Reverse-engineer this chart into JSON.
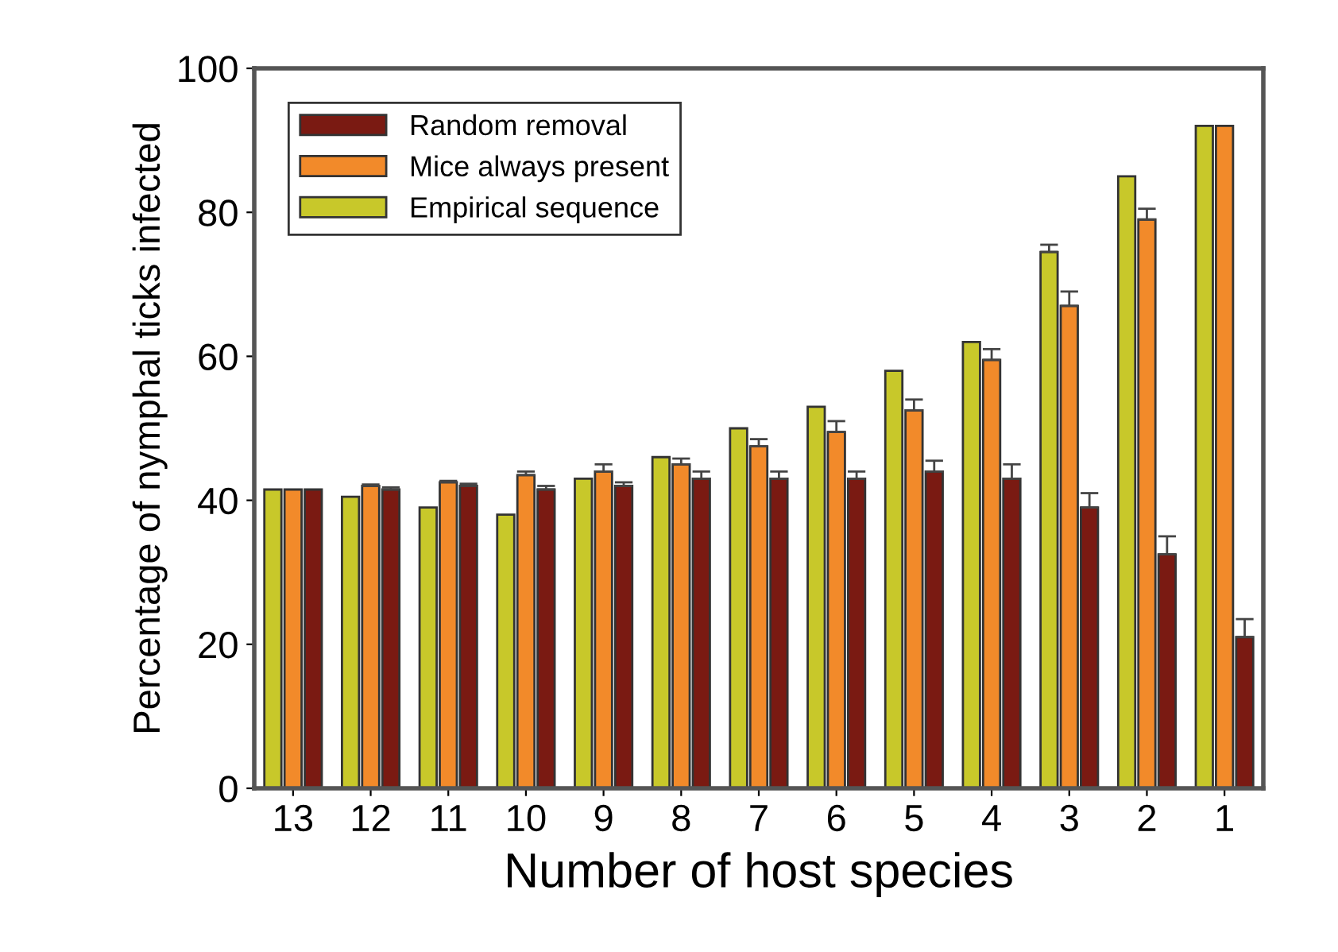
{
  "chart_data": {
    "type": "bar",
    "xlabel": "Number of host species",
    "ylabel": "Percentage of nymphal ticks infected",
    "categories": [
      "13",
      "12",
      "11",
      "10",
      "9",
      "8",
      "7",
      "6",
      "5",
      "4",
      "3",
      "2",
      "1"
    ],
    "series": [
      {
        "name": "Random removal",
        "color": "#7a1a12",
        "values": [
          41.5,
          41.5,
          42,
          41.5,
          42,
          43,
          43,
          43,
          44,
          43,
          39,
          32.5,
          21
        ],
        "errors": [
          null,
          [
            41.5,
            41.8
          ],
          [
            42,
            42.3
          ],
          [
            41.5,
            42
          ],
          [
            42,
            42.5
          ],
          [
            43,
            44
          ],
          [
            43,
            44
          ],
          [
            43,
            44
          ],
          [
            44,
            45.5
          ],
          [
            43,
            45
          ],
          [
            39,
            41
          ],
          [
            32.5,
            35
          ],
          [
            21,
            23.5
          ]
        ]
      },
      {
        "name": "Mice always present",
        "color": "#f28a2a",
        "values": [
          41.5,
          42,
          42.5,
          43.5,
          44,
          45,
          47.5,
          49.5,
          52.5,
          59.5,
          67,
          79,
          92
        ],
        "errors": [
          null,
          [
            42,
            42.2
          ],
          [
            42.5,
            42.7
          ],
          [
            43.5,
            44
          ],
          [
            44,
            45
          ],
          [
            45,
            45.8
          ],
          [
            47.5,
            48.5
          ],
          [
            49.5,
            51
          ],
          [
            52.5,
            54
          ],
          [
            59.5,
            61
          ],
          [
            67,
            69
          ],
          [
            79,
            80.5
          ],
          null
        ]
      },
      {
        "name": "Empirical sequence",
        "color": "#c8c82a",
        "values": [
          41.5,
          40.5,
          39,
          38,
          43,
          46,
          50,
          53,
          58,
          62,
          74.5,
          85,
          92
        ],
        "errors": [
          null,
          null,
          null,
          null,
          null,
          null,
          null,
          null,
          null,
          null,
          [
            74.5,
            75.5
          ],
          null,
          null
        ]
      }
    ],
    "ylim": [
      0,
      100
    ],
    "yticks": [
      0,
      20,
      40,
      60,
      80,
      100
    ],
    "grid": false,
    "legend": "top left"
  }
}
